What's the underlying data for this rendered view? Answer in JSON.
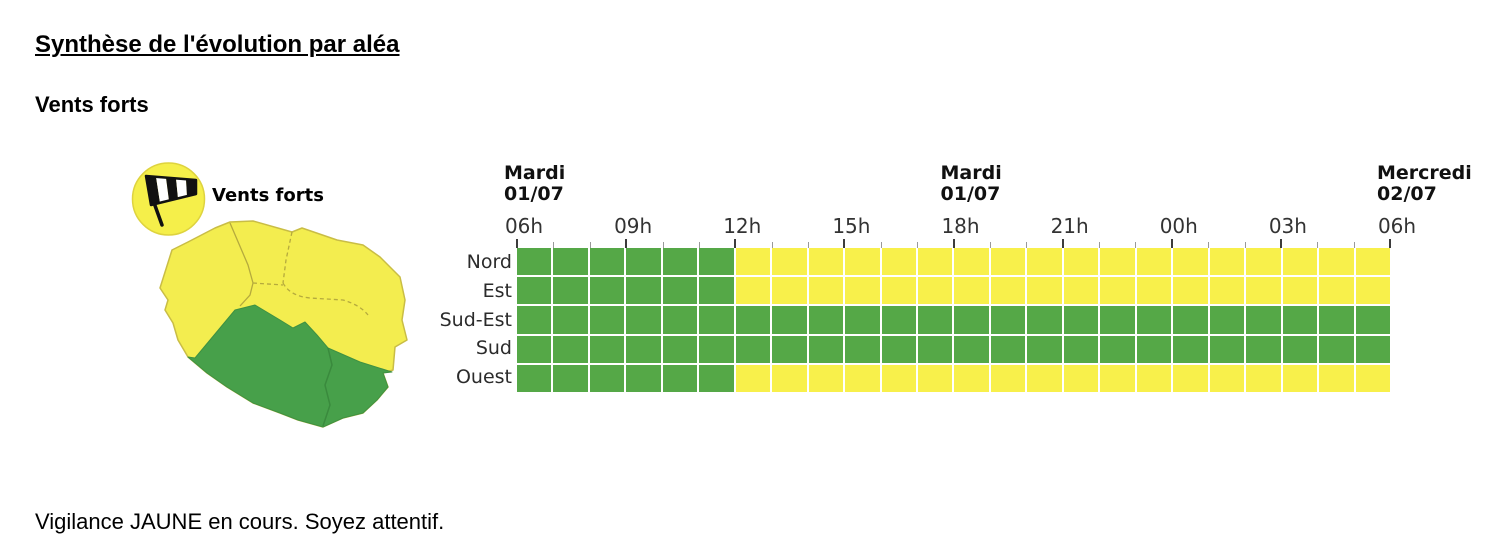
{
  "page": {
    "title": "Synthèse de l'évolution par aléa",
    "hazard_heading": "Vents forts",
    "status_text": "Vigilance JAUNE en cours. Soyez attentif."
  },
  "hazard": {
    "icon": "windsock-icon",
    "icon_label": "Vents forts"
  },
  "map": {
    "island": "La Réunion",
    "zones_jaune": [
      "Nord",
      "Est",
      "Ouest"
    ],
    "zones_vert": [
      "Sud-Est",
      "Sud"
    ]
  },
  "colors": {
    "vert": "#55a847",
    "jaune": "#f8f04b",
    "map_vert": "#47a04a",
    "map_jaune": "#f3ed4f",
    "map_border": "#b5aa3d",
    "icon_circle": "#f5ef4a"
  },
  "chart_data": {
    "type": "heatmap",
    "hours_total": 24,
    "time_axis_start": "Mardi 01/07 06h",
    "time_axis_end": "Mercredi 02/07 06h",
    "day_headers": [
      {
        "lines": [
          "Mardi",
          "01/07"
        ],
        "hour": 0
      },
      {
        "lines": [
          "Mardi",
          "01/07"
        ],
        "hour": 12
      },
      {
        "lines": [
          "Mercredi",
          "02/07"
        ],
        "hour": 24
      }
    ],
    "hour_ticks": [
      {
        "hour": 0,
        "label": "06h"
      },
      {
        "hour": 3,
        "label": "09h"
      },
      {
        "hour": 6,
        "label": "12h"
      },
      {
        "hour": 9,
        "label": "15h"
      },
      {
        "hour": 12,
        "label": "18h"
      },
      {
        "hour": 15,
        "label": "21h"
      },
      {
        "hour": 18,
        "label": "00h"
      },
      {
        "hour": 21,
        "label": "03h"
      },
      {
        "hour": 24,
        "label": "06h"
      }
    ],
    "rows": [
      {
        "label": "Nord",
        "cells": [
          "vert",
          "vert",
          "vert",
          "vert",
          "vert",
          "vert",
          "jaune",
          "jaune",
          "jaune",
          "jaune",
          "jaune",
          "jaune",
          "jaune",
          "jaune",
          "jaune",
          "jaune",
          "jaune",
          "jaune",
          "jaune",
          "jaune",
          "jaune",
          "jaune",
          "jaune",
          "jaune"
        ]
      },
      {
        "label": "Est",
        "cells": [
          "vert",
          "vert",
          "vert",
          "vert",
          "vert",
          "vert",
          "jaune",
          "jaune",
          "jaune",
          "jaune",
          "jaune",
          "jaune",
          "jaune",
          "jaune",
          "jaune",
          "jaune",
          "jaune",
          "jaune",
          "jaune",
          "jaune",
          "jaune",
          "jaune",
          "jaune",
          "jaune"
        ]
      },
      {
        "label": "Sud-Est",
        "cells": [
          "vert",
          "vert",
          "vert",
          "vert",
          "vert",
          "vert",
          "vert",
          "vert",
          "vert",
          "vert",
          "vert",
          "vert",
          "vert",
          "vert",
          "vert",
          "vert",
          "vert",
          "vert",
          "vert",
          "vert",
          "vert",
          "vert",
          "vert",
          "vert"
        ]
      },
      {
        "label": "Sud",
        "cells": [
          "vert",
          "vert",
          "vert",
          "vert",
          "vert",
          "vert",
          "vert",
          "vert",
          "vert",
          "vert",
          "vert",
          "vert",
          "vert",
          "vert",
          "vert",
          "vert",
          "vert",
          "vert",
          "vert",
          "vert",
          "vert",
          "vert",
          "vert",
          "vert"
        ]
      },
      {
        "label": "Ouest",
        "cells": [
          "vert",
          "vert",
          "vert",
          "vert",
          "vert",
          "vert",
          "jaune",
          "jaune",
          "jaune",
          "jaune",
          "jaune",
          "jaune",
          "jaune",
          "jaune",
          "jaune",
          "jaune",
          "jaune",
          "jaune",
          "jaune",
          "jaune",
          "jaune",
          "jaune",
          "jaune",
          "jaune"
        ]
      }
    ]
  }
}
